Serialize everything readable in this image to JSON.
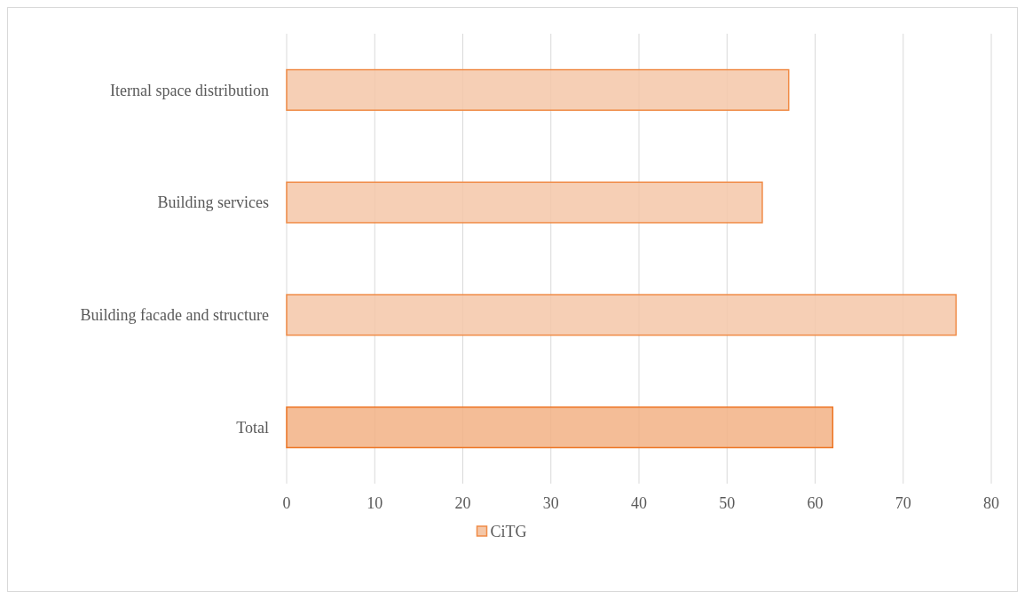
{
  "chart_data": {
    "type": "bar",
    "orientation": "horizontal",
    "categories": [
      "Iternal space distribution",
      "Building services",
      "Building facade and structure",
      "Total"
    ],
    "series": [
      {
        "name": "CiTG",
        "color": "#f4c7a8",
        "colors": [
          "#f4c7a8",
          "#f4c7a8",
          "#f4c7a8",
          "#f2b185"
        ],
        "values": [
          57,
          54,
          76,
          62
        ]
      }
    ],
    "xlim": [
      0,
      80
    ],
    "xticks": [
      0,
      10,
      20,
      30,
      40,
      50,
      60,
      70,
      80
    ],
    "grid": "x",
    "legend": "bottom"
  }
}
